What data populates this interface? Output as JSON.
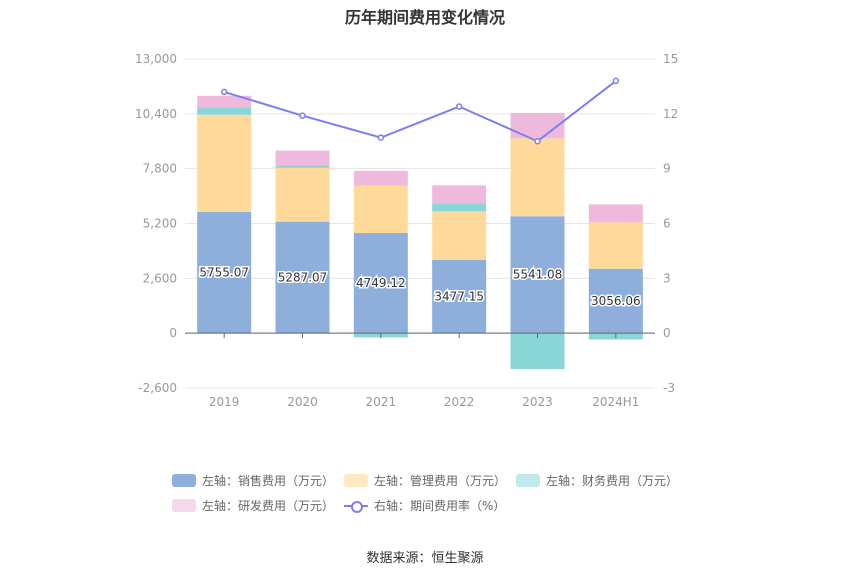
{
  "chart_data": {
    "type": "bar",
    "title": "历年期间费用变化情况",
    "categories": [
      "2019",
      "2020",
      "2021",
      "2022",
      "2023",
      "2024H1"
    ],
    "left_axis": {
      "ticks": [
        "-2,600",
        "0",
        "2,600",
        "5,200",
        "7,800",
        "10,400",
        "13,000"
      ],
      "min": -2600,
      "max": 13000
    },
    "right_axis": {
      "ticks": [
        "-3",
        "0",
        "3",
        "6",
        "9",
        "12",
        "15"
      ],
      "min": -3,
      "max": 15
    },
    "series": [
      {
        "name": "左轴：销售费用（万元）",
        "color": "#8eaedc",
        "values": [
          5755.07,
          5287.07,
          4749.12,
          3477.15,
          5541.08,
          3056.06
        ],
        "labels": [
          "5755.07",
          "5287.07",
          "4749.12",
          "3477.15",
          "5541.08",
          "3056.06"
        ]
      },
      {
        "name": "左轴：管理费用（万元）",
        "color": "#ffd99a",
        "values": [
          4600,
          2550,
          2250,
          2300,
          3700,
          2200
        ]
      },
      {
        "name": "左轴：财务费用（万元）",
        "color": "#88d6d8",
        "values": [
          350,
          120,
          -200,
          380,
          -1700,
          -300
        ]
      },
      {
        "name": "左轴：研发费用（万元）",
        "color": "#eeb9dc",
        "values": [
          550,
          700,
          700,
          850,
          1200,
          850
        ]
      }
    ],
    "line_series": {
      "name": "右轴：期间费用率（%）",
      "color": "#7b7ff0",
      "values": [
        13.2,
        11.9,
        10.7,
        12.4,
        10.5,
        13.8
      ]
    },
    "grid": true,
    "legend_position": "bottom"
  },
  "legend_labels": {
    "sales": "左轴：销售费用（万元）",
    "admin": "左轴：管理费用（万元）",
    "finance": "左轴：财务费用（万元）",
    "rd": "左轴：研发费用（万元）",
    "rate": "右轴：期间费用率（%）"
  },
  "source": "数据来源：恒生聚源"
}
